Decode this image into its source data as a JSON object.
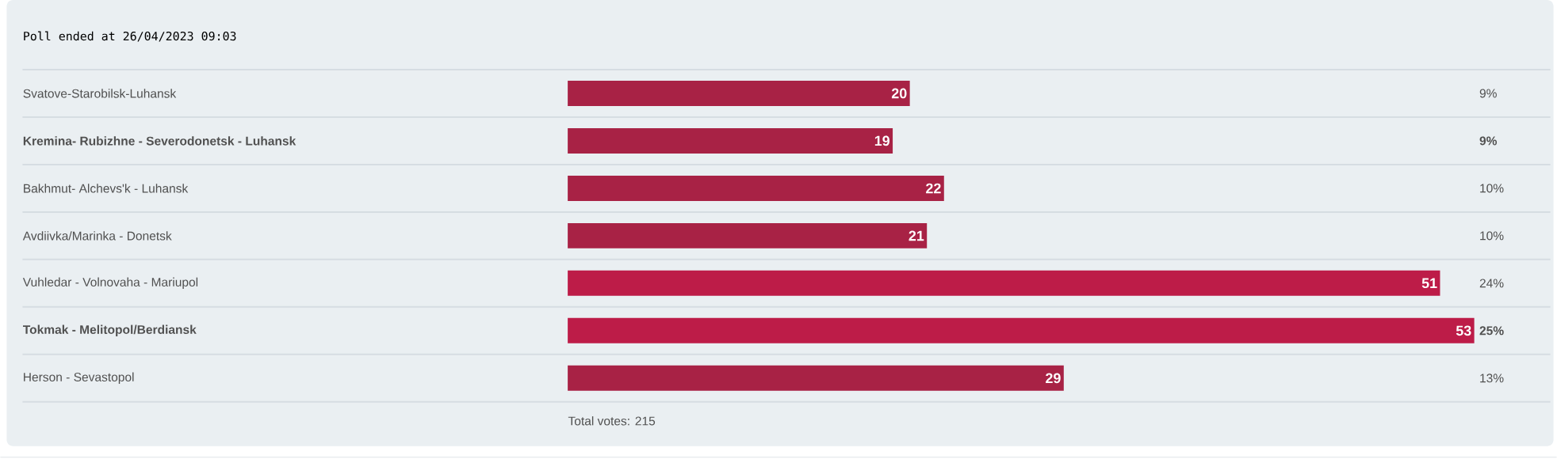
{
  "chart_data": {
    "type": "bar",
    "orientation": "horizontal",
    "title": "Poll ended at 26/04/2023 09:03",
    "categories": [
      "Svatove-Starobilsk-Luhansk",
      "**Kremina- Rubizhne - Severodonetsk - Luhansk**",
      "Bakhmut- Alchevs'k - Luhansk",
      "Avdiivka/Marinka - Donetsk",
      "Vuhledar - Volnovaha - Mariupol",
      "**Tokmak - Melitopol/Berdiansk**",
      "Herson - Sevastopol"
    ],
    "values": [
      20,
      19,
      22,
      21,
      51,
      53,
      29
    ],
    "colors": [
      "#a82245",
      "#a82245",
      "#a82245",
      "#a82245",
      "#bd1c48",
      "#bd1c48",
      "#a82245"
    ],
    "data_labels": true,
    "annotations": [
      "9%",
      "**9%**",
      "10%",
      "10%",
      "24%",
      "**25%**",
      "13%",
      "Total votes: 215"
    ]
  }
}
